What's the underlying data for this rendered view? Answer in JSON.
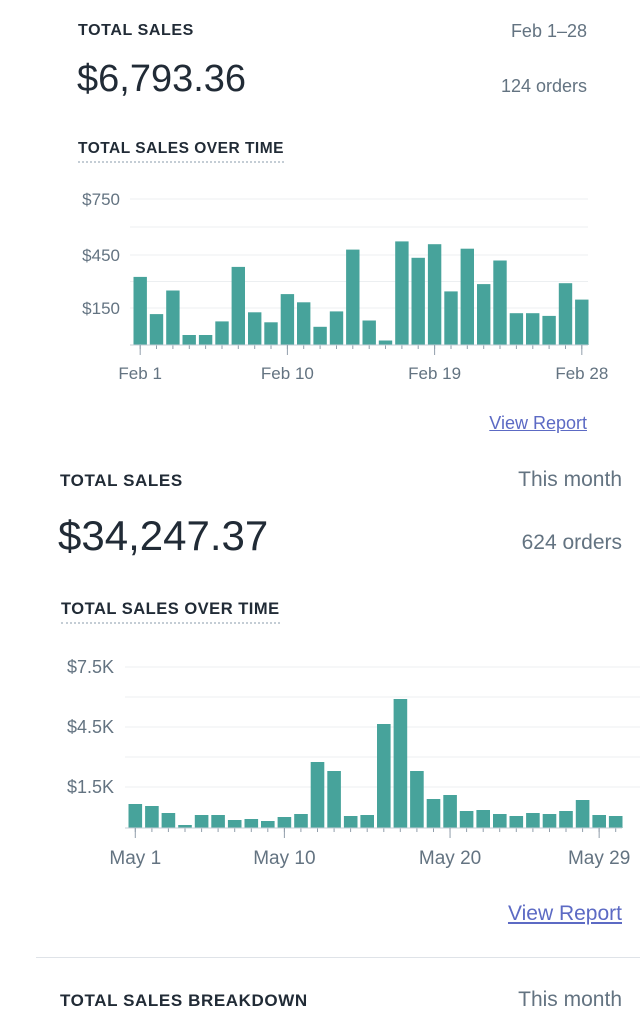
{
  "cards": [
    {
      "title": "TOTAL SALES",
      "period": "Feb 1–28",
      "amount": "$6,793.36",
      "orders": "124 orders",
      "chart_title": "TOTAL SALES OVER TIME",
      "view_report": "View Report"
    },
    {
      "title": "TOTAL SALES",
      "period": "This month",
      "amount": "$34,247.37",
      "orders": "624 orders",
      "chart_title": "TOTAL SALES OVER TIME",
      "view_report": "View Report"
    }
  ],
  "breakdown": {
    "title": "TOTAL SALES BREAKDOWN",
    "period": "This month"
  },
  "colors": {
    "bar": "#47a39b",
    "grid": "#eceff1",
    "axis_text": "#637381",
    "link": "#5c6ac4"
  },
  "chart_data": [
    {
      "type": "bar",
      "title": "TOTAL SALES OVER TIME",
      "xlabel": "",
      "ylabel": "",
      "ylim": [
        0,
        850
      ],
      "y_ticks": [
        150,
        450,
        750
      ],
      "y_tick_labels": [
        "$150",
        "$450",
        "$750"
      ],
      "x_tick_labels": [
        "Feb 1",
        "Feb 10",
        "Feb 19",
        "Feb 28"
      ],
      "x_tick_days": [
        1,
        10,
        19,
        28
      ],
      "categories": [
        "Feb 1",
        "Feb 2",
        "Feb 3",
        "Feb 4",
        "Feb 5",
        "Feb 6",
        "Feb 7",
        "Feb 8",
        "Feb 9",
        "Feb 10",
        "Feb 11",
        "Feb 12",
        "Feb 13",
        "Feb 14",
        "Feb 15",
        "Feb 16",
        "Feb 17",
        "Feb 18",
        "Feb 19",
        "Feb 20",
        "Feb 21",
        "Feb 22",
        "Feb 23",
        "Feb 24",
        "Feb 25",
        "Feb 26",
        "Feb 27",
        "Feb 28"
      ],
      "values": [
        375,
        170,
        300,
        55,
        55,
        130,
        430,
        180,
        125,
        280,
        235,
        100,
        185,
        525,
        135,
        25,
        570,
        480,
        555,
        295,
        530,
        335,
        465,
        175,
        175,
        160,
        340,
        250
      ],
      "series": [
        {
          "name": "",
          "values": [
            375,
            170,
            300,
            55,
            55,
            130,
            430,
            180,
            125,
            280,
            235,
            100,
            185,
            525,
            135,
            25,
            570,
            480,
            555,
            295,
            530,
            335,
            465,
            175,
            175,
            160,
            340,
            250
          ]
        }
      ]
    },
    {
      "type": "bar",
      "title": "TOTAL SALES OVER TIME",
      "xlabel": "",
      "ylabel": "",
      "ylim": [
        0,
        8700
      ],
      "y_ticks": [
        1500,
        4500,
        7500
      ],
      "y_tick_labels": [
        "$1.5K",
        "$4.5K",
        "$7.5K"
      ],
      "x_tick_labels": [
        "May 1",
        "May 10",
        "May 20",
        "May 29"
      ],
      "x_tick_days": [
        1,
        10,
        20,
        29
      ],
      "categories": [
        "May 1",
        "May 2",
        "May 3",
        "May 4",
        "May 5",
        "May 6",
        "May 7",
        "May 8",
        "May 9",
        "May 10",
        "May 11",
        "May 12",
        "May 13",
        "May 14",
        "May 15",
        "May 16",
        "May 17",
        "May 18",
        "May 19",
        "May 20",
        "May 21",
        "May 22",
        "May 23",
        "May 24",
        "May 25",
        "May 26",
        "May 27",
        "May 28",
        "May 29",
        "May 30"
      ],
      "values": [
        1200,
        1100,
        750,
        150,
        650,
        650,
        400,
        450,
        350,
        550,
        700,
        3300,
        2850,
        600,
        650,
        5200,
        6450,
        2850,
        1450,
        1650,
        850,
        900,
        700,
        600,
        750,
        700,
        850,
        1400,
        650,
        600
      ],
      "series": [
        {
          "name": "",
          "values": [
            1200,
            1100,
            750,
            150,
            650,
            650,
            400,
            450,
            350,
            550,
            700,
            3300,
            2850,
            600,
            650,
            5200,
            6450,
            2850,
            1450,
            1650,
            850,
            900,
            700,
            600,
            750,
            700,
            850,
            1400,
            650,
            600
          ]
        }
      ]
    }
  ]
}
